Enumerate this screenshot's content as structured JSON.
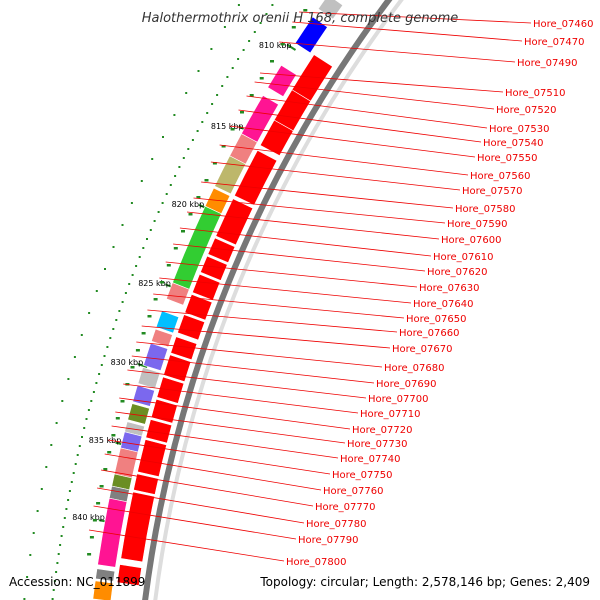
{
  "title": "Halothermothrix orenii H 168, complete genome",
  "accession": "Accession: NC_011899",
  "topology": "Topology: circular; Length: 2,578,146 bp; Genes: 2,409",
  "scale_ticks": [
    "810 kbp",
    "815 kbp",
    "820 kbp",
    "825 kbp",
    "830 kbp",
    "835 kbp",
    "840 kbp"
  ],
  "gene_labels": [
    "Hore_07460",
    "Hore_07470",
    "Hore_07490",
    "Hore_07510",
    "Hore_07520",
    "Hore_07530",
    "Hore_07540",
    "Hore_07550",
    "Hore_07560",
    "Hore_07570",
    "Hore_07580",
    "Hore_07590",
    "Hore_07600",
    "Hore_07610",
    "Hore_07620",
    "Hore_07630",
    "Hore_07640",
    "Hore_07650",
    "Hore_07660",
    "Hore_07670",
    "Hore_07680",
    "Hore_07690",
    "Hore_07700",
    "Hore_07710",
    "Hore_07720",
    "Hore_07730",
    "Hore_07740",
    "Hore_07750",
    "Hore_07760",
    "Hore_07770",
    "Hore_07780",
    "Hore_07790",
    "Hore_07800"
  ],
  "colors": {
    "cds_red": "#ff0000",
    "rna_green": "#228b22",
    "label_red": "#ee0000",
    "backbone": "#888888",
    "cog_palette": [
      "#ff1493",
      "#ff8c00",
      "#32cd32",
      "#f08080",
      "#bdb76b",
      "#7b68ee",
      "#00bfff",
      "#808080",
      "#6b8e23",
      "#ffc0cb",
      "#0000ff",
      "#c0c0c0"
    ]
  }
}
